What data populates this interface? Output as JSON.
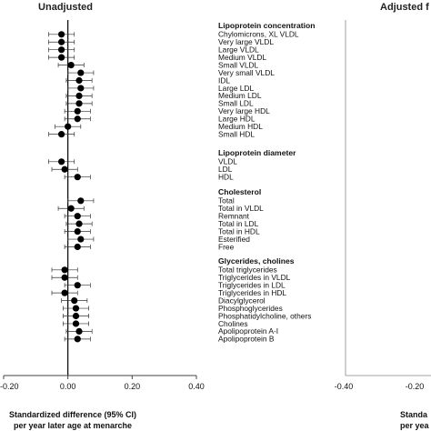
{
  "chart_data": [
    {
      "type": "scatter",
      "panel": "left",
      "title": "Unadjusted",
      "xlabel": "Standardized difference (95% CI)",
      "xlabel2": "per year later age at menarche",
      "xlim": [
        -0.2,
        0.4
      ],
      "xticks": [
        "-0.20",
        "0.00",
        "0.20",
        "0.40"
      ],
      "reference_line": 0.0,
      "groups": [
        {
          "title": "Lipoprotein concentration",
          "rows": [
            {
              "label": "Chylomicrons, XL VLDL",
              "est": -0.02,
              "lo": -0.06,
              "hi": 0.02
            },
            {
              "label": "Very large VLDL",
              "est": -0.02,
              "lo": -0.06,
              "hi": 0.02
            },
            {
              "label": "Large VLDL",
              "est": -0.02,
              "lo": -0.06,
              "hi": 0.02
            },
            {
              "label": "Medium VLDL",
              "est": -0.02,
              "lo": -0.06,
              "hi": 0.02
            },
            {
              "label": "Small VLDL",
              "est": 0.01,
              "lo": -0.03,
              "hi": 0.05
            },
            {
              "label": "Very small VLDL",
              "est": 0.04,
              "lo": 0.0,
              "hi": 0.08
            },
            {
              "label": "IDL",
              "est": 0.035,
              "lo": -0.005,
              "hi": 0.075
            },
            {
              "label": "Large LDL",
              "est": 0.04,
              "lo": 0.0,
              "hi": 0.08
            },
            {
              "label": "Medium LDL",
              "est": 0.035,
              "lo": -0.005,
              "hi": 0.075
            },
            {
              "label": "Small LDL",
              "est": 0.035,
              "lo": -0.005,
              "hi": 0.075
            },
            {
              "label": "Very large HDL",
              "est": 0.03,
              "lo": -0.01,
              "hi": 0.07
            },
            {
              "label": "Large HDL",
              "est": 0.03,
              "lo": -0.01,
              "hi": 0.07
            },
            {
              "label": "Medium HDL",
              "est": 0.0,
              "lo": -0.04,
              "hi": 0.04
            },
            {
              "label": "Small HDL",
              "est": -0.02,
              "lo": -0.06,
              "hi": 0.02
            }
          ]
        },
        {
          "title": "Lipoprotein diameter",
          "rows": [
            {
              "label": "VLDL",
              "est": -0.02,
              "lo": -0.06,
              "hi": 0.02
            },
            {
              "label": "LDL",
              "est": -0.01,
              "lo": -0.05,
              "hi": 0.03
            },
            {
              "label": "HDL",
              "est": 0.03,
              "lo": -0.01,
              "hi": 0.07
            }
          ]
        },
        {
          "title": "Cholesterol",
          "rows": [
            {
              "label": "Total",
              "est": 0.04,
              "lo": 0.0,
              "hi": 0.08
            },
            {
              "label": "Total in VLDL",
              "est": 0.01,
              "lo": -0.03,
              "hi": 0.05
            },
            {
              "label": "Remnant",
              "est": 0.03,
              "lo": -0.01,
              "hi": 0.07
            },
            {
              "label": "Total in LDL",
              "est": 0.035,
              "lo": -0.005,
              "hi": 0.075
            },
            {
              "label": "Total in HDL",
              "est": 0.03,
              "lo": -0.01,
              "hi": 0.07
            },
            {
              "label": "Esterified",
              "est": 0.04,
              "lo": 0.0,
              "hi": 0.08
            },
            {
              "label": "Free",
              "est": 0.03,
              "lo": -0.01,
              "hi": 0.07
            }
          ]
        },
        {
          "title": "Glycerides, cholines",
          "rows": [
            {
              "label": "Total triglycerides",
              "est": -0.01,
              "lo": -0.05,
              "hi": 0.03
            },
            {
              "label": "Triglycerides in VLDL",
              "est": -0.01,
              "lo": -0.05,
              "hi": 0.03
            },
            {
              "label": "Triglycerides in LDL",
              "est": 0.03,
              "lo": -0.01,
              "hi": 0.07
            },
            {
              "label": "Triglycerides in HDL",
              "est": -0.01,
              "lo": -0.05,
              "hi": 0.03
            },
            {
              "label": "Diacylglycerol",
              "est": 0.02,
              "lo": -0.02,
              "hi": 0.06
            },
            {
              "label": "Phosphoglycerides",
              "est": 0.025,
              "lo": -0.015,
              "hi": 0.065
            },
            {
              "label": "Phosphatidylcholine, others",
              "est": 0.025,
              "lo": -0.015,
              "hi": 0.065
            },
            {
              "label": "Cholines",
              "est": 0.025,
              "lo": -0.015,
              "hi": 0.065
            },
            {
              "label": "Apolipoprotein A-I",
              "est": 0.035,
              "lo": -0.005,
              "hi": 0.075
            },
            {
              "label": "Apolipoprotein B",
              "est": 0.03,
              "lo": -0.01,
              "hi": 0.07
            }
          ]
        }
      ]
    },
    {
      "type": "scatter",
      "panel": "right",
      "title": "Adjusted f",
      "xlabel": "Standa",
      "xlabel2": "per yea",
      "xticks": [
        "-0.40",
        "-0.20"
      ]
    }
  ]
}
